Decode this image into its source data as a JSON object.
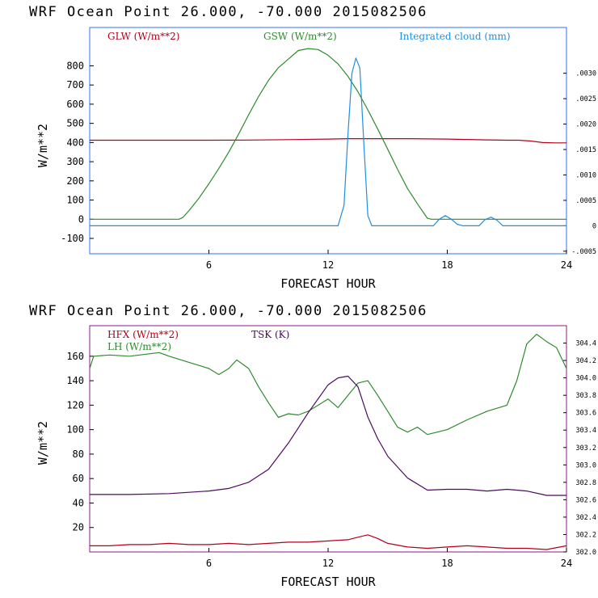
{
  "panels": [
    {
      "header": "WRF   Ocean Point   26.000, -70.000  2015082506",
      "xlabel": "FORECAST HOUR",
      "ylabel": "W/m**2",
      "frame_color": "#2f6fff"
    },
    {
      "header": "WRF   Ocean Point   26.000, -70.000  2015082506",
      "xlabel": "FORECAST HOUR",
      "ylabel": "W/m**2",
      "frame_color": "#8b1a8b"
    }
  ],
  "chart_data": [
    {
      "type": "line",
      "title": "WRF   Ocean Point   26.000, -70.000  2015082506",
      "xlabel": "FORECAST HOUR",
      "ylabel": "W/m**2",
      "xlim": [
        0,
        24
      ],
      "ylim": [
        -180,
        1000
      ],
      "xticks": [
        "6",
        "12",
        "18",
        "24"
      ],
      "yticks": [
        "-100",
        "0",
        "100",
        "200",
        "300",
        "400",
        "500",
        "600",
        "700",
        "800"
      ],
      "ylim_right": [
        -0.00055,
        0.0039
      ],
      "yticks_right": [
        ".0030",
        ".0025",
        ".0020",
        ".0015",
        ".0010",
        ".0005",
        "0",
        "-.0005"
      ],
      "legend_position": "top",
      "series": [
        {
          "name": "GLW (W/m**2)",
          "color": "#b3001b",
          "axis": "left",
          "x": [
            0,
            2,
            4,
            6,
            8,
            10,
            12,
            13,
            14,
            16,
            18,
            20,
            21,
            21.6,
            22.2,
            22.8,
            23.4,
            24
          ],
          "y": [
            412,
            412,
            412,
            412,
            413,
            415,
            418,
            420,
            420,
            420,
            418,
            414,
            412,
            412,
            408,
            400,
            398,
            398
          ]
        },
        {
          "name": "GSW (W/m**2)",
          "color": "#2e8b2e",
          "axis": "left",
          "x": [
            0,
            4.5,
            4.7,
            5,
            5.5,
            6,
            6.5,
            7,
            7.5,
            8,
            8.5,
            9,
            9.5,
            10,
            10.5,
            11,
            11.5,
            12,
            12.5,
            13,
            13.5,
            14,
            14.5,
            15,
            15.5,
            16,
            16.5,
            17,
            17.2,
            24
          ],
          "y": [
            0,
            0,
            10,
            45,
            110,
            185,
            265,
            350,
            445,
            545,
            640,
            725,
            790,
            835,
            880,
            890,
            885,
            855,
            810,
            745,
            665,
            570,
            470,
            365,
            260,
            160,
            80,
            5,
            0,
            0
          ]
        },
        {
          "name": "Integrated cloud (mm)",
          "color": "#1f8fe0",
          "axis": "right",
          "x": [
            0,
            12.5,
            12.8,
            13.0,
            13.2,
            13.4,
            13.6,
            13.8,
            14.0,
            14.2,
            17.3,
            17.6,
            17.9,
            18.2,
            18.5,
            18.8,
            19.6,
            19.9,
            20.2,
            20.5,
            20.8,
            24
          ],
          "y": [
            0,
            0,
            0.0004,
            0.0018,
            0.003,
            0.0033,
            0.0031,
            0.0016,
            0.0002,
            0,
            0,
            0.00013,
            0.0002,
            0.00013,
            3e-05,
            0,
            0,
            0.00012,
            0.00017,
            0.00011,
            0,
            0
          ]
        }
      ]
    },
    {
      "type": "line",
      "title": "WRF   Ocean Point   26.000, -70.000  2015082506",
      "xlabel": "FORECAST HOUR",
      "ylabel": "W/m**2",
      "xlim": [
        0,
        24
      ],
      "ylim": [
        0,
        185
      ],
      "xticks": [
        "6",
        "12",
        "18",
        "24"
      ],
      "yticks": [
        "20",
        "40",
        "60",
        "80",
        "100",
        "120",
        "140",
        "160"
      ],
      "ylim_right": [
        302.0,
        304.6
      ],
      "yticks_right": [
        "304.4",
        "304.2",
        "304.0",
        "303.8",
        "303.6",
        "303.4",
        "303.2",
        "303.0",
        "302.8",
        "302.6",
        "302.4",
        "302.2",
        "302.0"
      ],
      "legend_position": "top-left",
      "series": [
        {
          "name": "HFX (W/m**2)",
          "color": "#b3001b",
          "axis": "left",
          "x": [
            0,
            1,
            2,
            3,
            4,
            5,
            6,
            7,
            8,
            9,
            10,
            11,
            12,
            13,
            13.5,
            14,
            14.5,
            15,
            16,
            17,
            18,
            19,
            20,
            21,
            22,
            23,
            24
          ],
          "y": [
            5,
            5,
            6,
            6,
            7,
            6,
            6,
            7,
            6,
            7,
            8,
            8,
            9,
            10,
            12,
            14,
            11,
            7,
            4,
            3,
            4,
            5,
            4,
            3,
            3,
            2,
            5
          ]
        },
        {
          "name": "LH (W/m**2)",
          "color": "#2e8b2e",
          "axis": "left",
          "x": [
            0,
            0.2,
            1,
            2,
            3,
            3.5,
            4,
            5,
            6,
            6.5,
            7,
            7.4,
            8,
            8.5,
            9,
            9.5,
            10,
            10.5,
            11,
            11.5,
            12,
            12.5,
            13,
            13.5,
            14,
            14.5,
            15,
            15.5,
            16,
            16.5,
            17,
            17.5,
            18,
            19,
            20,
            21,
            21.5,
            22,
            22.5,
            23,
            23.5,
            24
          ],
          "y": [
            150,
            160,
            161,
            160,
            162,
            163,
            160,
            155,
            150,
            145,
            150,
            157,
            150,
            135,
            122,
            110,
            113,
            112,
            115,
            120,
            125,
            118,
            128,
            138,
            140,
            128,
            115,
            102,
            98,
            102,
            96,
            98,
            100,
            108,
            115,
            120,
            140,
            170,
            178,
            172,
            167,
            150
          ]
        },
        {
          "name": "TSK (K)",
          "color": "#4b0a5e",
          "axis": "right",
          "x": [
            0,
            2,
            4,
            6,
            7,
            8,
            9,
            10,
            11,
            12,
            12.5,
            13,
            13.5,
            14,
            14.5,
            15,
            16,
            17,
            18,
            19,
            20,
            21,
            22,
            23,
            24
          ],
          "y": [
            302.66,
            302.66,
            302.67,
            302.7,
            302.73,
            302.8,
            302.95,
            303.25,
            303.6,
            303.92,
            304.0,
            304.02,
            303.9,
            303.55,
            303.3,
            303.1,
            302.85,
            302.71,
            302.72,
            302.72,
            302.7,
            302.72,
            302.7,
            302.65,
            302.65
          ]
        }
      ]
    }
  ]
}
